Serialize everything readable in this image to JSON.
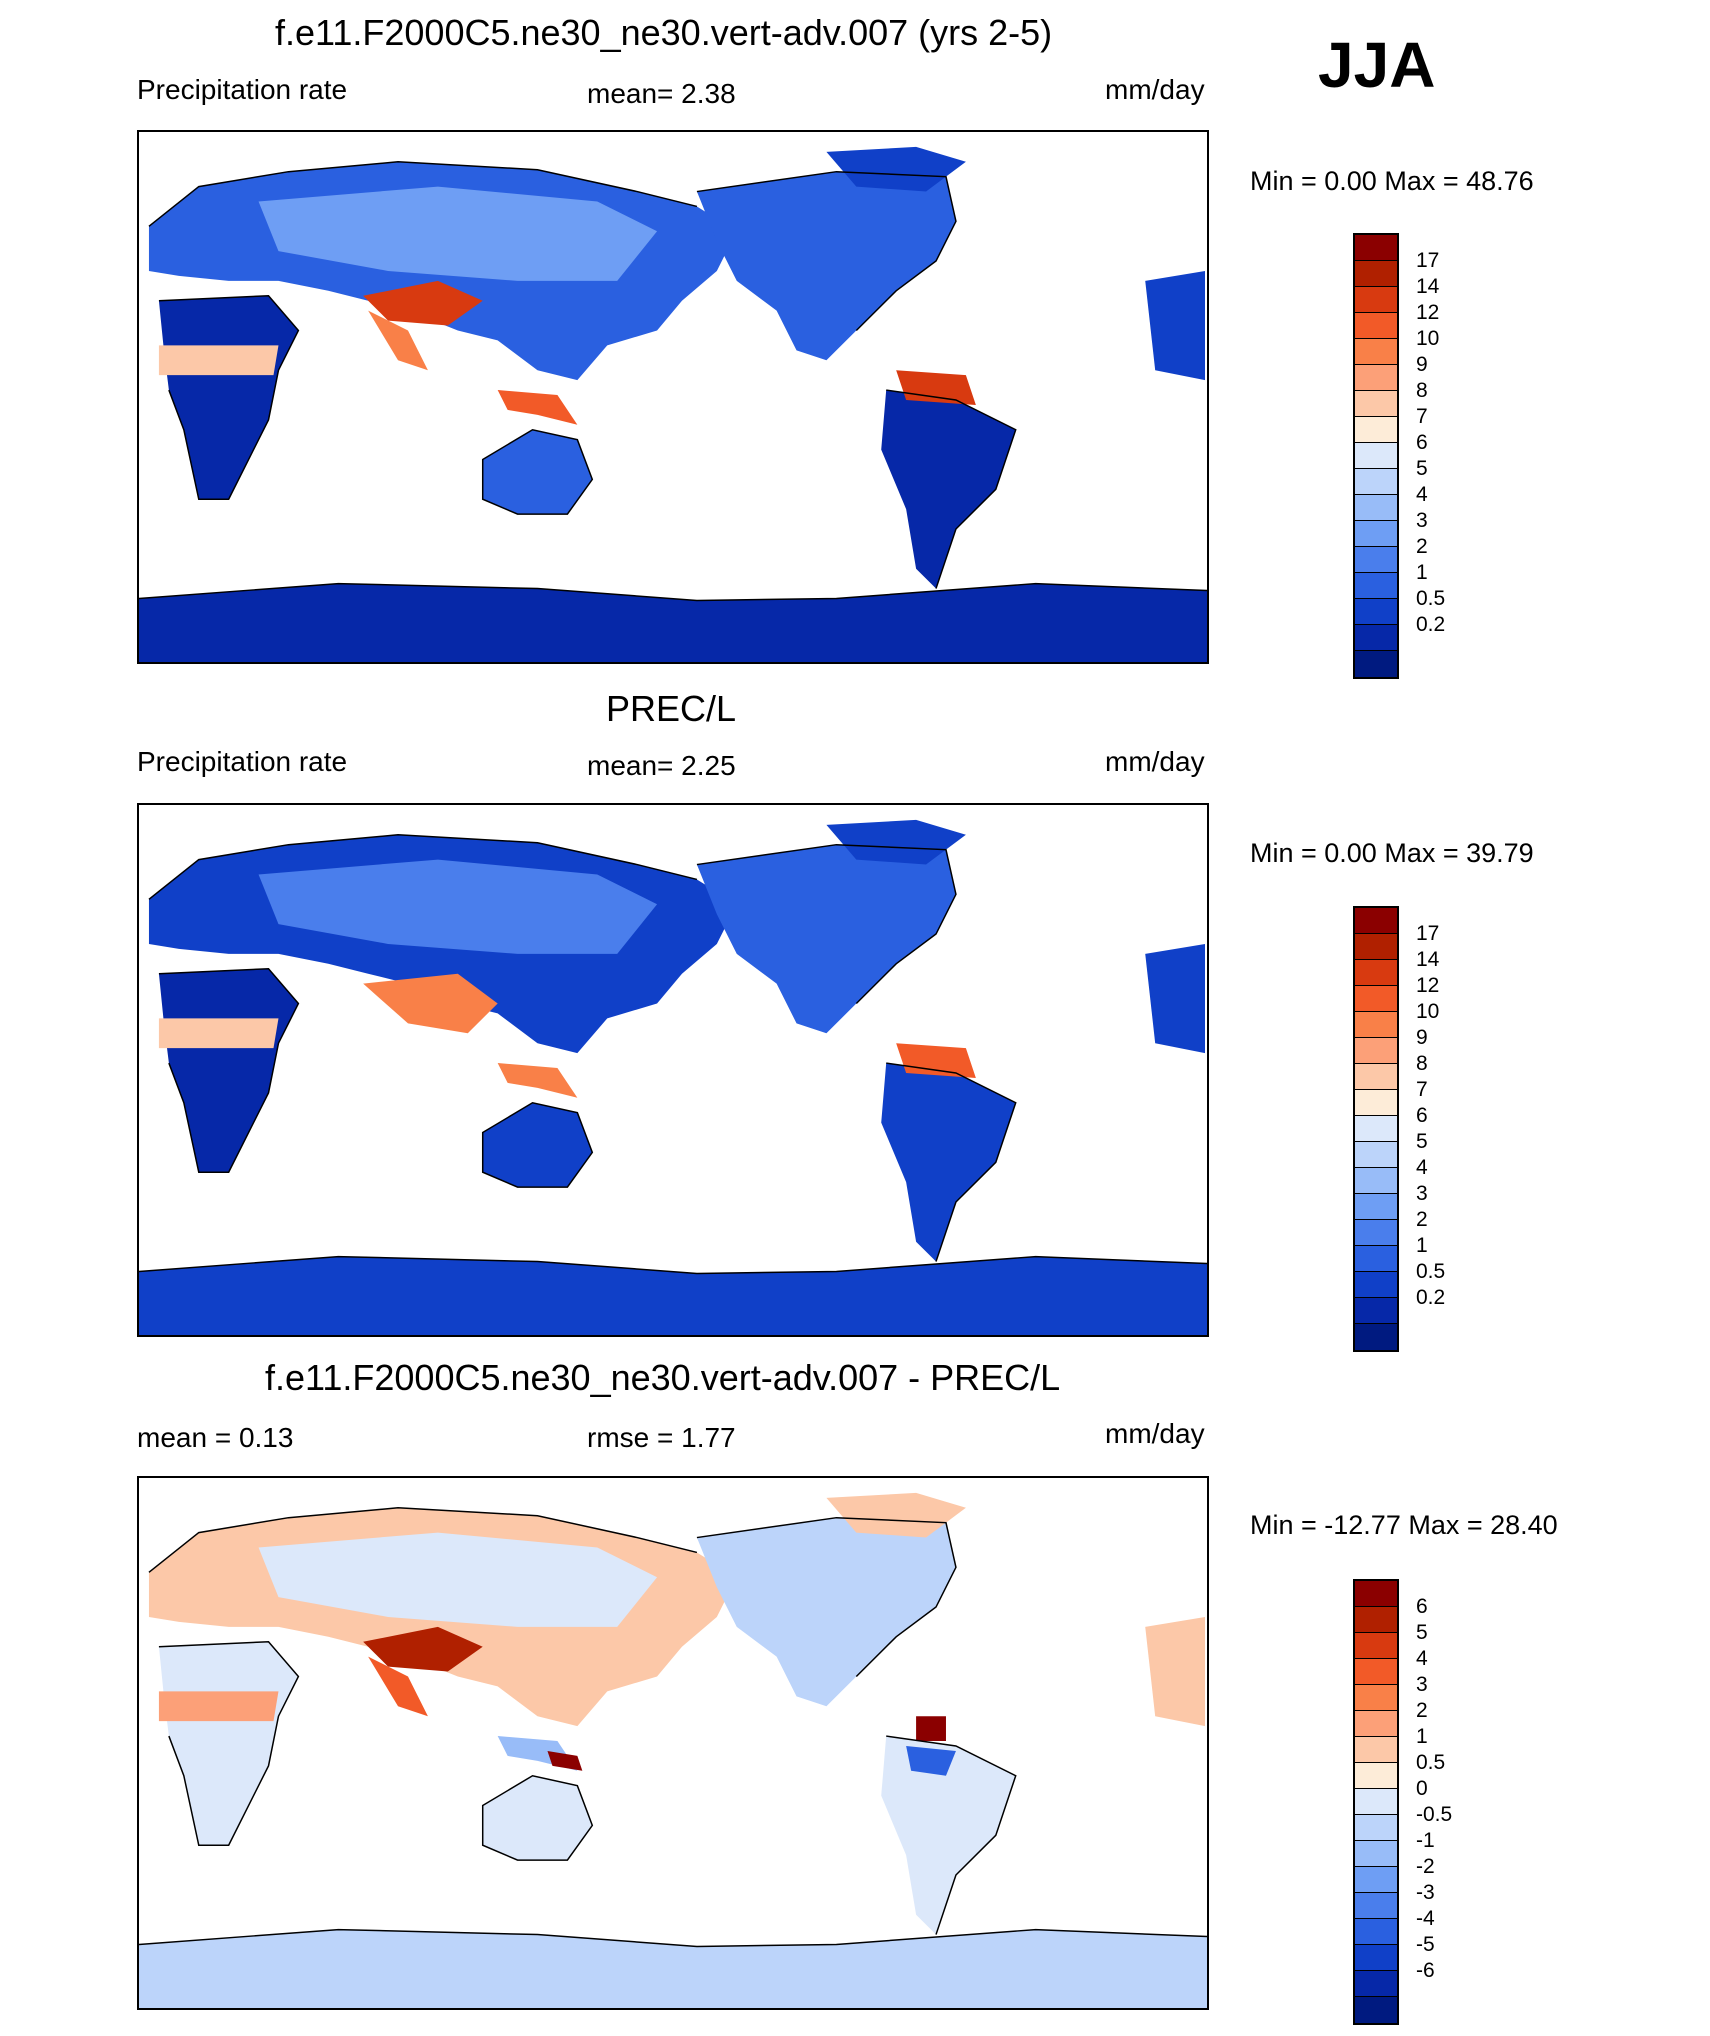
{
  "season": "JJA",
  "panels": [
    {
      "id": "model",
      "title": "f.e11.F2000C5.ne30_ne30.vert-adv.007 (yrs 2-5)",
      "left_label": "Precipitation rate",
      "center_label": "mean=   2.38",
      "units": "mm/day",
      "minmax": "Min =   0.00 Max =  48.76",
      "colorbar": {
        "colors": [
          "#8b0000",
          "#b02000",
          "#d83a10",
          "#f25a28",
          "#f98048",
          "#fca078",
          "#fcc8a8",
          "#fdecd8",
          "#dce8fa",
          "#bcd4fa",
          "#98bcf8",
          "#6e9ef4",
          "#4a7eec",
          "#2a60e0",
          "#1040c8",
          "#0628a8",
          "#001a80"
        ],
        "labels": [
          "17",
          "14",
          "12",
          "10",
          "9",
          "8",
          "7",
          "6",
          "5",
          "4",
          "3",
          "2",
          "1",
          "0.5",
          "0.2"
        ]
      }
    },
    {
      "id": "obs",
      "title": "PREC/L",
      "left_label": "Precipitation rate",
      "center_label": "mean=   2.25",
      "units": "mm/day",
      "minmax": "Min =   0.00 Max =  39.79",
      "colorbar": {
        "colors": [
          "#8b0000",
          "#b02000",
          "#d83a10",
          "#f25a28",
          "#f98048",
          "#fca078",
          "#fcc8a8",
          "#fdecd8",
          "#dce8fa",
          "#bcd4fa",
          "#98bcf8",
          "#6e9ef4",
          "#4a7eec",
          "#2a60e0",
          "#1040c8",
          "#0628a8",
          "#001a80"
        ],
        "labels": [
          "17",
          "14",
          "12",
          "10",
          "9",
          "8",
          "7",
          "6",
          "5",
          "4",
          "3",
          "2",
          "1",
          "0.5",
          "0.2"
        ]
      }
    },
    {
      "id": "diff",
      "title": "f.e11.F2000C5.ne30_ne30.vert-adv.007 - PREC/L",
      "left_label": "mean =   0.13",
      "center_label": "rmse =   1.77",
      "units": "mm/day",
      "minmax": "Min = -12.77 Max =  28.40",
      "colorbar": {
        "colors": [
          "#8b0000",
          "#b02000",
          "#d83a10",
          "#f25a28",
          "#f98048",
          "#fca078",
          "#fcc8a8",
          "#fdecd8",
          "#dce8fa",
          "#bcd4fa",
          "#98bcf8",
          "#6e9ef4",
          "#4a7eec",
          "#2a60e0",
          "#1040c8",
          "#0628a8",
          "#001a80"
        ],
        "labels": [
          "6",
          "5",
          "4",
          "3",
          "2",
          "1",
          "0.5",
          "0",
          "-0.5",
          "-1",
          "-2",
          "-3",
          "-4",
          "-5",
          "-6"
        ]
      }
    }
  ]
}
